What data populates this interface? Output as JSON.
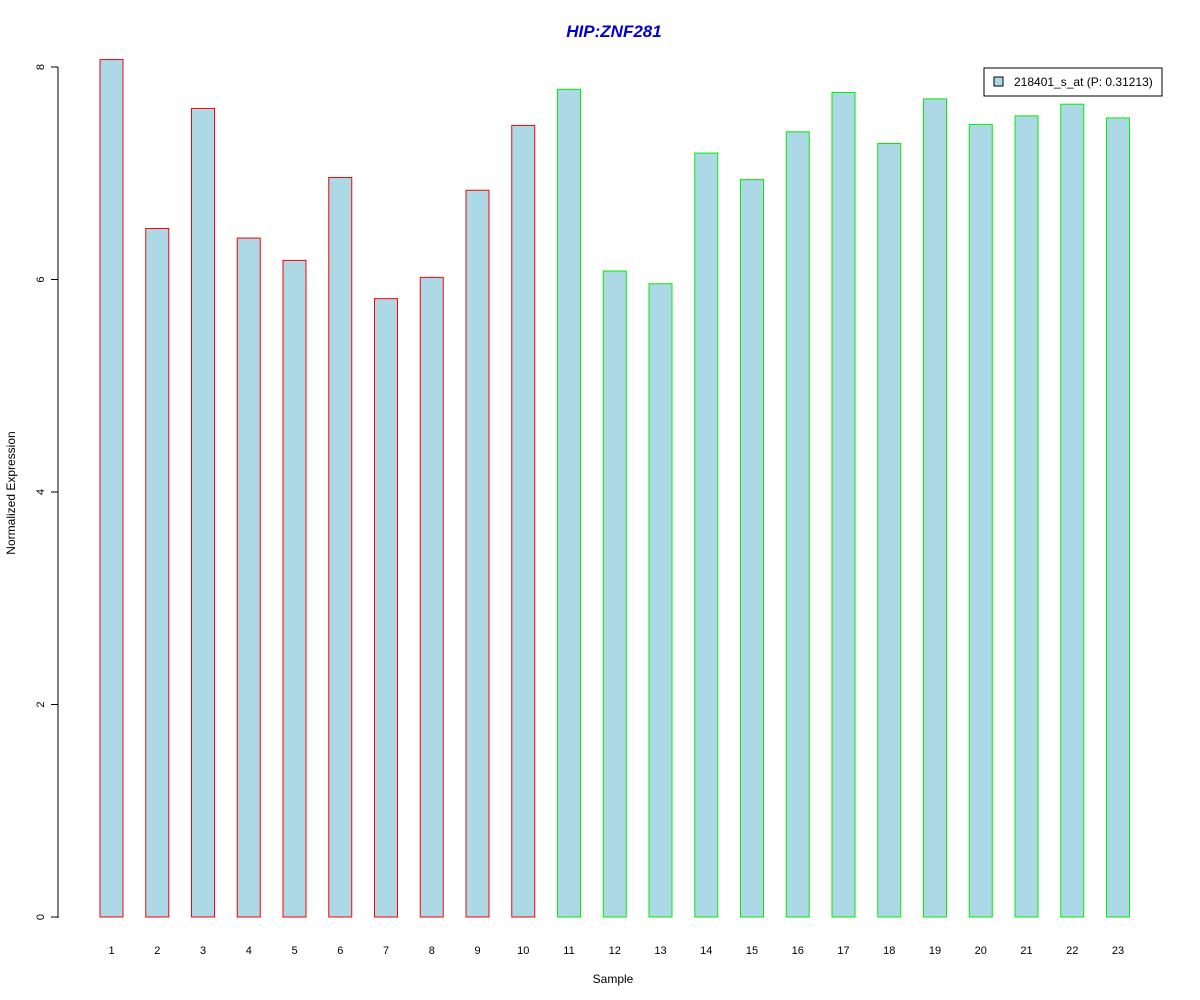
{
  "chart_data": {
    "type": "bar",
    "title": "HIP:ZNF281",
    "xlabel": "Sample",
    "ylabel": "Normalized Expression",
    "categories": [
      "1",
      "2",
      "3",
      "4",
      "5",
      "6",
      "7",
      "8",
      "9",
      "10",
      "11",
      "12",
      "13",
      "14",
      "15",
      "16",
      "17",
      "18",
      "19",
      "20",
      "21",
      "22",
      "23"
    ],
    "series": [
      {
        "name": "218401_s_at (P: 0.31213)",
        "values": [
          8.07,
          6.48,
          7.61,
          6.39,
          6.18,
          6.96,
          5.82,
          6.02,
          6.84,
          7.45,
          7.79,
          6.08,
          5.96,
          7.19,
          6.94,
          7.39,
          7.76,
          7.28,
          7.7,
          7.46,
          7.54,
          7.65,
          7.52
        ]
      }
    ],
    "group_colors": [
      "#ff0000",
      "#ff0000",
      "#ff0000",
      "#ff0000",
      "#ff0000",
      "#ff0000",
      "#ff0000",
      "#ff0000",
      "#ff0000",
      "#ff0000",
      "#00ee00",
      "#00ee00",
      "#00ee00",
      "#00ee00",
      "#00ee00",
      "#00ee00",
      "#00ee00",
      "#00ee00",
      "#00ee00",
      "#00ee00",
      "#00ee00",
      "#00ee00",
      "#00ee00"
    ],
    "ylim": [
      0,
      8
    ],
    "yticks": [
      0,
      2,
      4,
      6,
      8
    ],
    "grid": false,
    "legend_position": "top-right",
    "colors": {
      "bar_fill": "#add8e6",
      "title": "#0000cc"
    }
  }
}
